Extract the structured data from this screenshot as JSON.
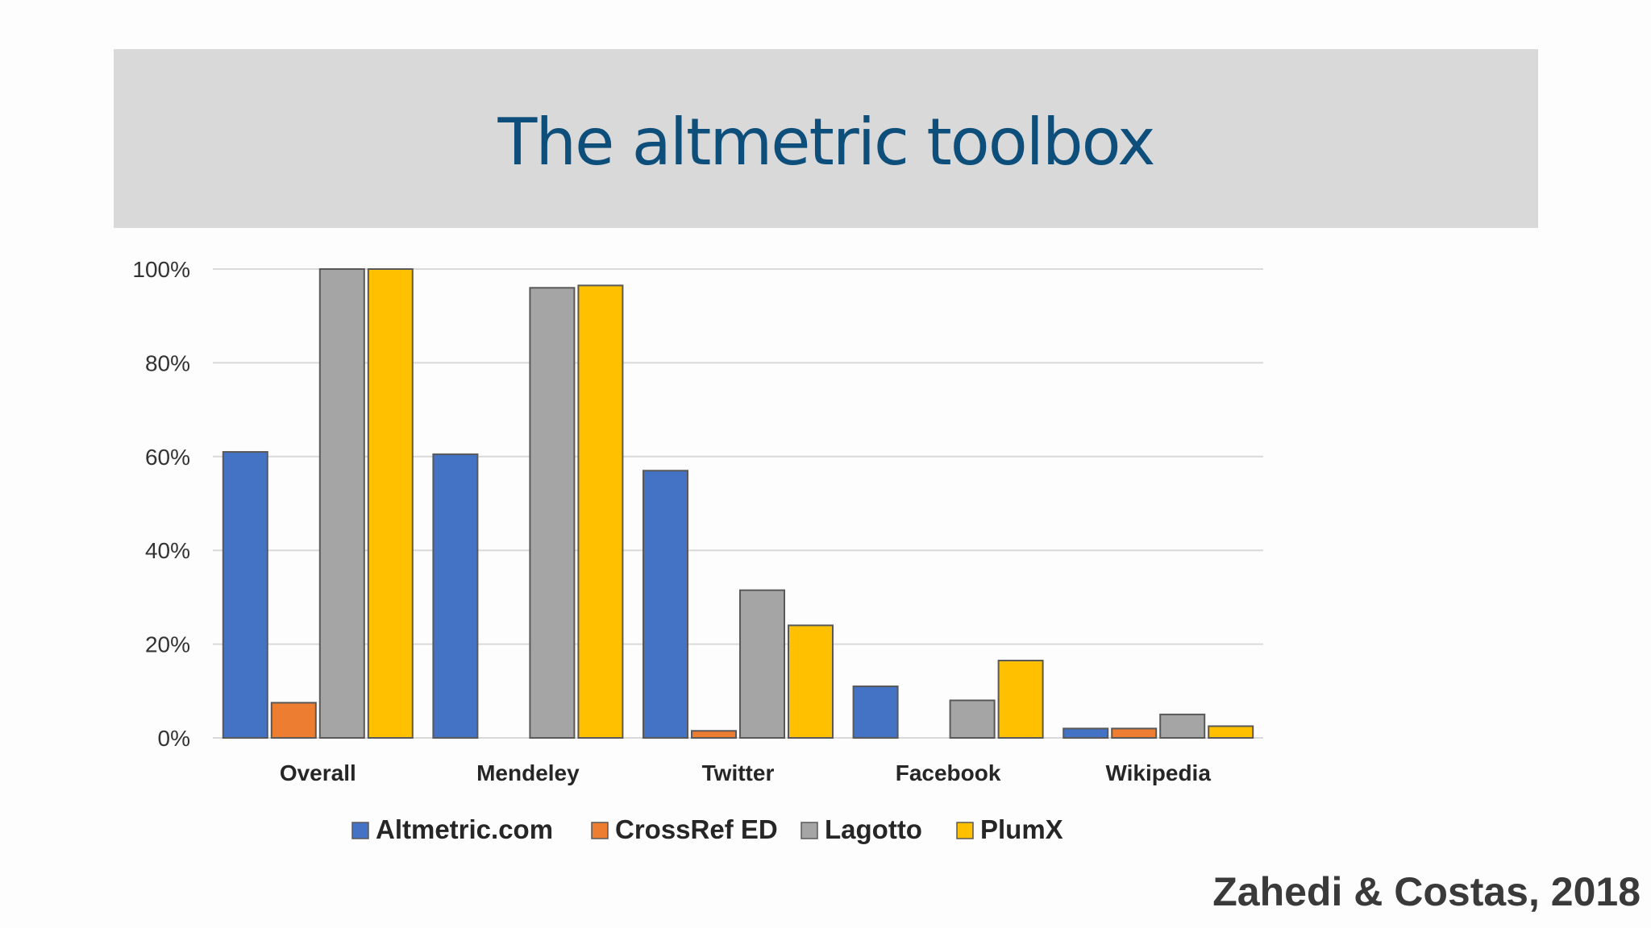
{
  "slide": {
    "title": "The altmetric toolbox",
    "citation": "Zahedi & Costas, 2018"
  },
  "colors": {
    "banner_bg": "#d9d9d9",
    "title": "#0d4f7a",
    "grid": "#d9d9d9",
    "bar_outline": "#595959"
  },
  "chart_data": {
    "type": "bar",
    "categories": [
      "Overall",
      "Mendeley",
      "Twitter",
      "Facebook",
      "Wikipedia"
    ],
    "series": [
      {
        "name": "Altmetric.com",
        "color": "#4472c4",
        "values": [
          61,
          60.5,
          57,
          11,
          2
        ]
      },
      {
        "name": "CrossRef ED",
        "color": "#ed7d31",
        "values": [
          7.5,
          0,
          1.5,
          0,
          2
        ]
      },
      {
        "name": "Lagotto",
        "color": "#a5a5a5",
        "values": [
          100,
          96,
          31.5,
          8,
          5
        ]
      },
      {
        "name": "PlumX",
        "color": "#ffc000",
        "values": [
          100,
          96.5,
          24,
          16.5,
          2.5
        ]
      }
    ],
    "yticks": [
      "0%",
      "20%",
      "40%",
      "60%",
      "80%",
      "100%"
    ],
    "ylim": [
      0,
      100
    ],
    "grid": true,
    "legend_position": "bottom"
  }
}
